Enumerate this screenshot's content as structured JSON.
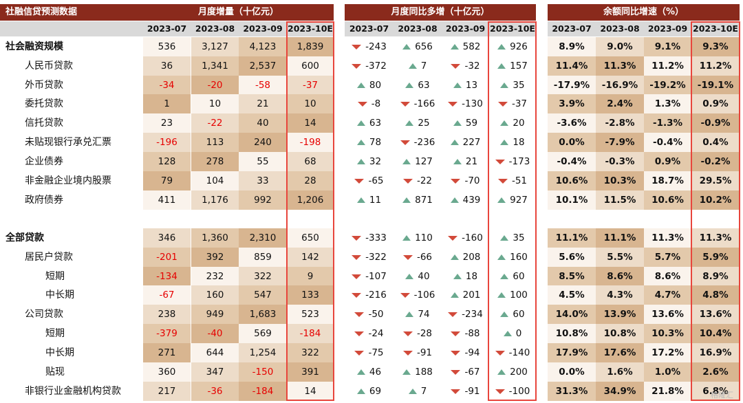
{
  "title": "社融信贷预测数据",
  "sections": {
    "monthly": "月度增量（十亿元）",
    "yoy": "月度同比多增（十亿元）",
    "growth": "余额同比增速（%）"
  },
  "periods": [
    "2023-07",
    "2023-08",
    "2023-09",
    "2023-10E"
  ],
  "rows": [
    {
      "label": "社会融资规模",
      "indent": 0,
      "bold": true,
      "m": [
        "536",
        "3,127",
        "4,123",
        "1,839"
      ],
      "y": [
        "-243",
        "656",
        "582",
        "926"
      ],
      "g": [
        "8.9%",
        "9.0%",
        "9.1%",
        "9.3%"
      ]
    },
    {
      "label": "人民币贷款",
      "indent": 1,
      "bold": false,
      "m": [
        "36",
        "1,341",
        "2,537",
        "600"
      ],
      "y": [
        "-372",
        "7",
        "-32",
        "157"
      ],
      "g": [
        "11.4%",
        "11.3%",
        "11.2%",
        "11.2%"
      ]
    },
    {
      "label": "外币贷款",
      "indent": 1,
      "bold": false,
      "m": [
        "-34",
        "-20",
        "-58",
        "-37"
      ],
      "y": [
        "80",
        "63",
        "13",
        "35"
      ],
      "g": [
        "-17.9%",
        "-16.9%",
        "-19.2%",
        "-19.1%"
      ]
    },
    {
      "label": "委托贷款",
      "indent": 1,
      "bold": false,
      "m": [
        "1",
        "10",
        "21",
        "10"
      ],
      "y": [
        "-8",
        "-166",
        "-130",
        "-37"
      ],
      "g": [
        "3.9%",
        "2.4%",
        "1.3%",
        "0.9%"
      ]
    },
    {
      "label": "信托贷款",
      "indent": 1,
      "bold": false,
      "m": [
        "23",
        "-22",
        "40",
        "14"
      ],
      "y": [
        "63",
        "25",
        "59",
        "20"
      ],
      "g": [
        "-3.6%",
        "-2.8%",
        "-1.3%",
        "-0.9%"
      ]
    },
    {
      "label": "未贴现银行承兑汇票",
      "indent": 1,
      "bold": false,
      "m": [
        "-196",
        "113",
        "240",
        "-198"
      ],
      "y": [
        "78",
        "-236",
        "227",
        "18"
      ],
      "g": [
        "0.0%",
        "-7.9%",
        "-0.4%",
        "0.4%"
      ]
    },
    {
      "label": "企业债券",
      "indent": 1,
      "bold": false,
      "m": [
        "128",
        "278",
        "55",
        "68"
      ],
      "y": [
        "32",
        "127",
        "21",
        "-173"
      ],
      "g": [
        "-0.4%",
        "-0.3%",
        "0.9%",
        "-0.2%"
      ]
    },
    {
      "label": "非金融企业境内股票",
      "indent": 1,
      "bold": false,
      "m": [
        "79",
        "104",
        "33",
        "28"
      ],
      "y": [
        "-65",
        "-22",
        "-70",
        "-51"
      ],
      "g": [
        "10.6%",
        "10.3%",
        "18.7%",
        "29.5%"
      ]
    },
    {
      "label": "政府债券",
      "indent": 1,
      "bold": false,
      "m": [
        "411",
        "1,176",
        "992",
        "1,206"
      ],
      "y": [
        "11",
        "871",
        "439",
        "927"
      ],
      "g": [
        "10.1%",
        "11.5%",
        "10.6%",
        "10.2%"
      ]
    },
    {
      "label": "全部贷款",
      "indent": 0,
      "bold": true,
      "m": [
        "346",
        "1,360",
        "2,310",
        "650"
      ],
      "y": [
        "-333",
        "110",
        "-160",
        "35"
      ],
      "g": [
        "11.1%",
        "11.1%",
        "11.3%",
        "11.3%"
      ]
    },
    {
      "label": "居民户贷款",
      "indent": 1,
      "bold": false,
      "m": [
        "-201",
        "392",
        "859",
        "142"
      ],
      "y": [
        "-322",
        "-66",
        "208",
        "160"
      ],
      "g": [
        "5.6%",
        "5.5%",
        "5.7%",
        "5.9%"
      ]
    },
    {
      "label": "短期",
      "indent": 2,
      "bold": false,
      "m": [
        "-134",
        "232",
        "322",
        "9"
      ],
      "y": [
        "-107",
        "40",
        "18",
        "60"
      ],
      "g": [
        "8.5%",
        "8.6%",
        "8.6%",
        "8.9%"
      ]
    },
    {
      "label": "中长期",
      "indent": 2,
      "bold": false,
      "m": [
        "-67",
        "160",
        "547",
        "133"
      ],
      "y": [
        "-216",
        "-106",
        "201",
        "100"
      ],
      "g": [
        "4.5%",
        "4.3%",
        "4.7%",
        "4.8%"
      ]
    },
    {
      "label": "公司贷款",
      "indent": 1,
      "bold": false,
      "m": [
        "238",
        "949",
        "1,683",
        "523"
      ],
      "y": [
        "-50",
        "74",
        "-234",
        "60"
      ],
      "g": [
        "14.0%",
        "13.9%",
        "13.6%",
        "13.6%"
      ]
    },
    {
      "label": "短期",
      "indent": 2,
      "bold": false,
      "m": [
        "-379",
        "-40",
        "569",
        "-184"
      ],
      "y": [
        "-24",
        "-28",
        "-88",
        "0"
      ],
      "g": [
        "10.8%",
        "10.8%",
        "10.3%",
        "10.4%"
      ]
    },
    {
      "label": "中长期",
      "indent": 2,
      "bold": false,
      "m": [
        "271",
        "644",
        "1,254",
        "322"
      ],
      "y": [
        "-75",
        "-91",
        "-94",
        "-140"
      ],
      "g": [
        "17.9%",
        "17.6%",
        "17.2%",
        "16.9%"
      ]
    },
    {
      "label": "贴现",
      "indent": 2,
      "bold": false,
      "m": [
        "360",
        "347",
        "-150",
        "391"
      ],
      "y": [
        "46",
        "188",
        "-67",
        "200"
      ],
      "g": [
        "0.0%",
        "1.6%",
        "1.0%",
        "2.6%"
      ]
    },
    {
      "label": "非银行业金融机构贷款",
      "indent": 1,
      "bold": false,
      "m": [
        "217",
        "-36",
        "-184",
        "14"
      ],
      "y": [
        "69",
        "7",
        "-91",
        "-100"
      ],
      "g": [
        "31.3%",
        "34.9%",
        "21.8%",
        "6.8%"
      ]
    }
  ],
  "watermark": "格隆汇",
  "colors": {
    "header": "#8a2a1c",
    "yearbar": "#d9d9d9",
    "highlight_box": "#e8453c",
    "negative": "#e60000",
    "arrow_up": "#6aa98f",
    "arrow_down": "#d24a3a"
  }
}
